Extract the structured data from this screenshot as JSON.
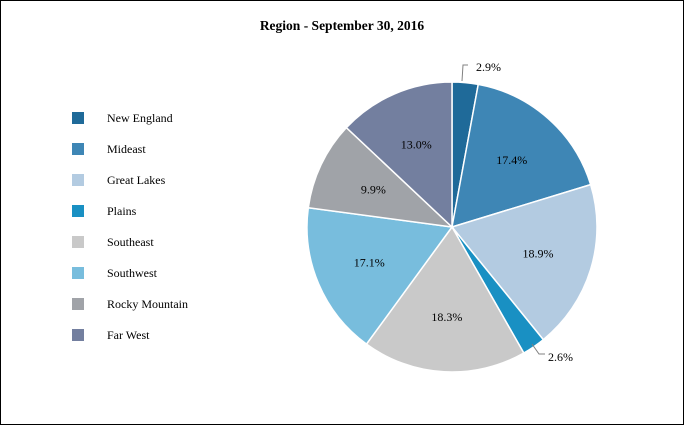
{
  "chart_data": {
    "type": "pie",
    "title": "Region - September 30, 2016",
    "legend_position": "left",
    "slices": [
      {
        "label": "New England",
        "value": 2.9,
        "display": "2.9%",
        "color": "#1F6A99"
      },
      {
        "label": "Mideast",
        "value": 17.4,
        "display": "17.4%",
        "color": "#3E86B5"
      },
      {
        "label": "Great Lakes",
        "value": 18.9,
        "display": "18.9%",
        "color": "#B3CBE1"
      },
      {
        "label": "Plains",
        "value": 2.6,
        "display": "2.6%",
        "color": "#1990C3"
      },
      {
        "label": "Southeast",
        "value": 18.3,
        "display": "18.3%",
        "color": "#C9C9C9"
      },
      {
        "label": "Southwest",
        "value": 17.1,
        "display": "17.1%",
        "color": "#78BDDD"
      },
      {
        "label": "Rocky Mountain",
        "value": 9.9,
        "display": "9.9%",
        "color": "#A0A3A8"
      },
      {
        "label": "Far West",
        "value": 13.0,
        "display": "13.0%",
        "color": "#737F9F"
      }
    ]
  }
}
